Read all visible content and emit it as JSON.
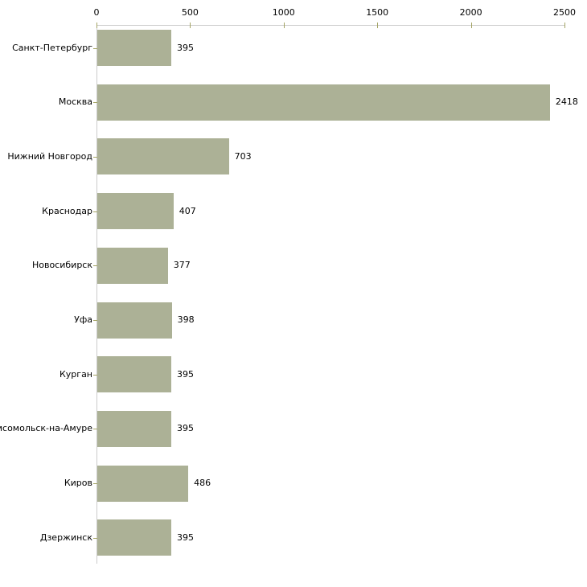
{
  "chart_data": {
    "type": "bar",
    "orientation": "horizontal",
    "title": "",
    "xlabel": "",
    "ylabel": "",
    "categories": [
      "Санкт-Петербург",
      "Москва",
      "Нижний Новгород",
      "Краснодар",
      "Новосибирск",
      "Уфа",
      "Курган",
      "Комсомольск-на-Амуре",
      "Киров",
      "Дзержинск"
    ],
    "values": [
      395,
      2418,
      703,
      407,
      377,
      398,
      395,
      395,
      486,
      395
    ],
    "x_ticks": [
      0,
      500,
      1000,
      1500,
      2000,
      2500
    ],
    "xlim": [
      0,
      2500
    ],
    "grid": false,
    "legend_position": "none",
    "axis_position": "top",
    "colors": {
      "bar": "#acb196",
      "axis": "#cccccc",
      "tick": "#a4a464",
      "text": "#000000",
      "background": "#ffffff"
    }
  }
}
